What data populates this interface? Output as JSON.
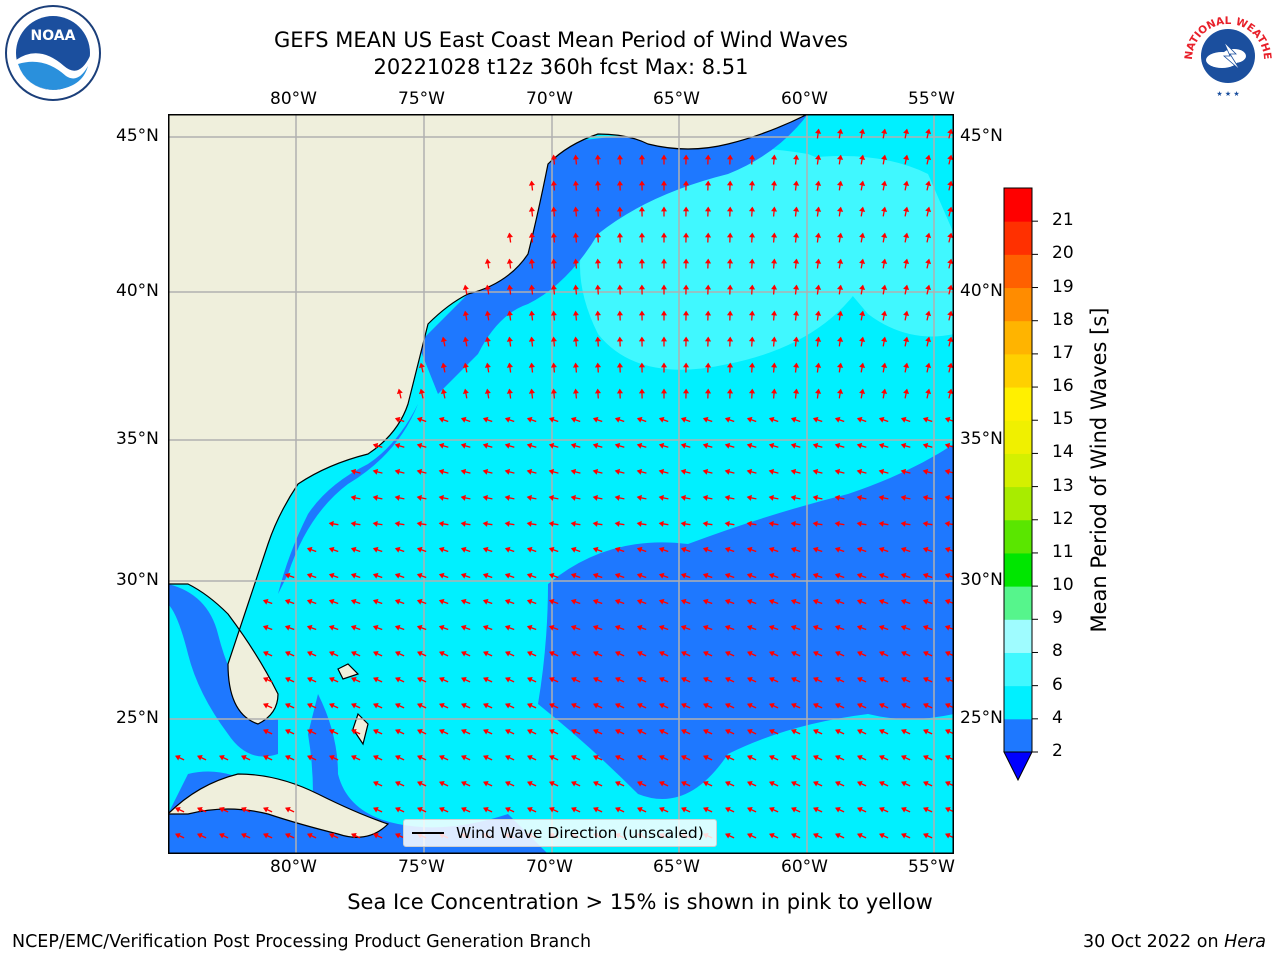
{
  "title": {
    "line1": "GEFS MEAN US East Coast Mean Period of Wind Waves",
    "line2": "20221028 t12z 360h fcst   Max: 8.51"
  },
  "subtitle": "Sea Ice Concentration > 15% is shown in pink to yellow",
  "footer": {
    "left": "NCEP/EMC/Verification Post Processing Product Generation Branch",
    "date": "30 Oct 2022 on",
    "machine": "Hera"
  },
  "legend": {
    "label": "Wind Wave Direction (unscaled)"
  },
  "colorbar": {
    "label": "Mean Period of Wind Waves [s]",
    "ticks": [
      "2",
      "4",
      "6",
      "8",
      "9",
      "10",
      "11",
      "12",
      "13",
      "14",
      "15",
      "16",
      "17",
      "18",
      "19",
      "20",
      "21"
    ],
    "colors": [
      "#1e78ff",
      "#00f0ff",
      "#40f8ff",
      "#9ffcff",
      "#56f58c",
      "#00e600",
      "#5ae600",
      "#a8ec00",
      "#d4f000",
      "#f0f000",
      "#fff000",
      "#ffd000",
      "#ffb400",
      "#ff8c00",
      "#ff6000",
      "#ff3000",
      "#ff0000"
    ],
    "extend_color": "#0000ff"
  },
  "map": {
    "lon_labels": [
      "80°W",
      "75°W",
      "70°W",
      "65°W",
      "60°W",
      "55°W"
    ],
    "lat_labels": [
      "45°N",
      "40°N",
      "35°N",
      "30°N",
      "25°N"
    ],
    "land_color": "#efefdc",
    "ocean_color": "#00f0ff",
    "low_period_color": "#1e78ff",
    "mid_period_color": "#40f8ff",
    "arrow_color": "#ff0000",
    "grid_color": "#b0b0b0"
  },
  "logos": {
    "noaa": "NOAA",
    "nws_arc": "NATIONAL WEATHER SERVICE"
  }
}
